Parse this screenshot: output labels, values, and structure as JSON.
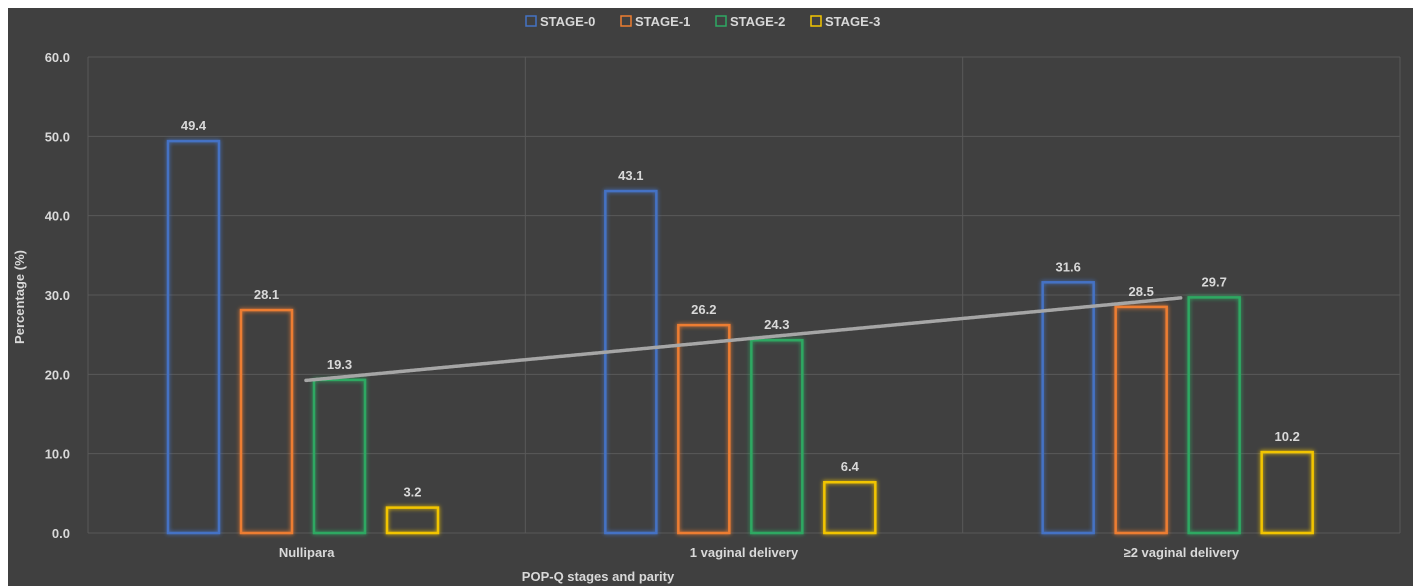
{
  "chart_data": {
    "type": "bar",
    "xlabel": "POP-Q stages and parity",
    "ylabel": "Percentage (%)",
    "ylim": [
      0,
      60
    ],
    "y_ticks": [
      "0.0",
      "10.0",
      "20.0",
      "30.0",
      "40.0",
      "50.0",
      "60.0"
    ],
    "categories": [
      "Nullipara",
      "1 vaginal delivery",
      "≥2 vaginal delivery"
    ],
    "series": [
      {
        "name": "STAGE-0",
        "color": "#4472c4",
        "values": [
          49.4,
          43.1,
          31.6
        ],
        "labels": [
          "49.4",
          "43.1",
          "31.6"
        ]
      },
      {
        "name": "STAGE-1",
        "color": "#ed7d31",
        "values": [
          28.1,
          26.2,
          28.5
        ],
        "labels": [
          "28.1",
          "26.2",
          "28.5"
        ]
      },
      {
        "name": "STAGE-2",
        "color": "#2ea862",
        "values": [
          19.3,
          24.3,
          29.7
        ],
        "labels": [
          "19.3",
          "24.3",
          "29.7"
        ]
      },
      {
        "name": "STAGE-3",
        "color": "#f2c500",
        "values": [
          3.2,
          6.4,
          10.2
        ],
        "labels": [
          "3.2",
          "6.4",
          "10.2"
        ]
      }
    ],
    "trendline": {
      "series": "STAGE-2",
      "style": "dotted",
      "color": "#a6a6a6"
    },
    "legend": "top",
    "grid": true,
    "background": "#404040"
  }
}
